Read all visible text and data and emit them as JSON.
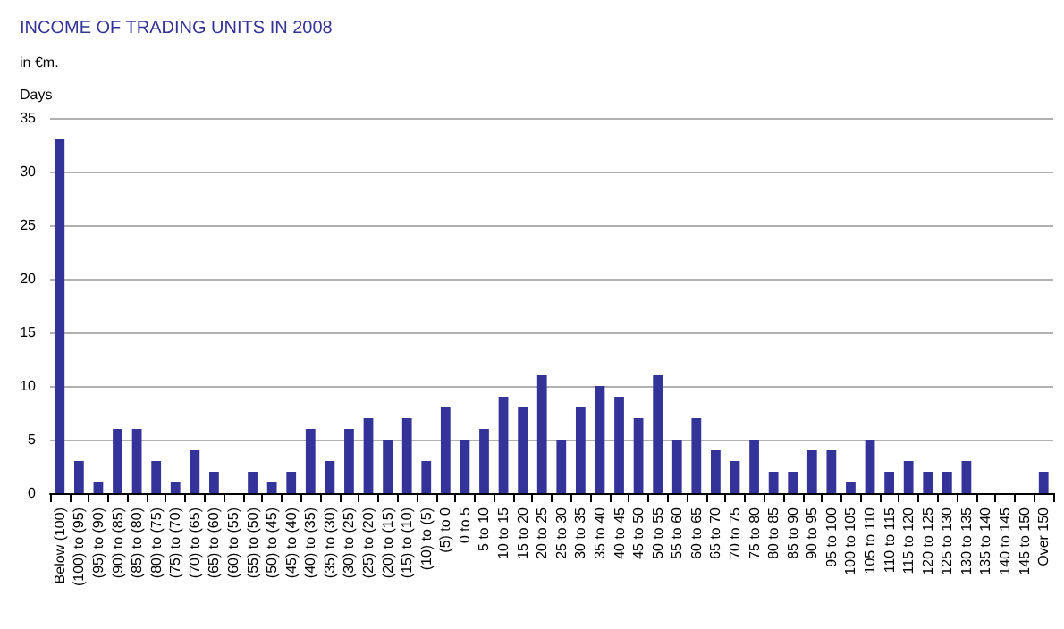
{
  "chart_data": {
    "type": "bar",
    "title": "INCOME OF TRADING UNITS IN 2008",
    "subtitle": "in €m.",
    "ylabel": "Days",
    "categories": [
      "Below (100)",
      "(100) to (95)",
      "(95) to (90)",
      "(90) to (85)",
      "(85) to (80)",
      "(80) to (75)",
      "(75) to (70)",
      "(70) to (65)",
      "(65) to (60)",
      "(60) to (55)",
      "(55) to (50)",
      "(50) to (45)",
      "(45) to (40)",
      "(40) to (35)",
      "(35) to (30)",
      "(30) to (25)",
      "(25) to (20)",
      "(20) to (15)",
      "(15) to (10)",
      "(10) to (5)",
      "(5) to 0",
      "0 to 5",
      "5 to 10",
      "10 to 15",
      "15 to 20",
      "20 to 25",
      "25 to 30",
      "30 to 35",
      "35 to 40",
      "40 to 45",
      "45 to 50",
      "50 to 55",
      "55 to 60",
      "60 to 65",
      "65 to 70",
      "70 to 75",
      "75 to 80",
      "80 to 85",
      "85 to 90",
      "90 to 95",
      "95 to 100",
      "100 to 105",
      "105 to 110",
      "110 to 115",
      "115 to 120",
      "120 to 125",
      "125 to 130",
      "130 to 135",
      "135 to 140",
      "140 to 145",
      "145 to 150",
      "Over 150"
    ],
    "values": [
      33,
      3,
      1,
      6,
      6,
      3,
      1,
      4,
      2,
      0,
      2,
      1,
      2,
      6,
      3,
      6,
      7,
      5,
      7,
      3,
      8,
      5,
      6,
      9,
      8,
      11,
      5,
      8,
      10,
      9,
      7,
      11,
      5,
      7,
      4,
      3,
      5,
      2,
      2,
      4,
      4,
      1,
      5,
      2,
      3,
      2,
      2,
      3,
      0,
      0,
      0,
      2
    ],
    "color": "#333399",
    "ylim": [
      0,
      35
    ],
    "yticks": [
      0,
      5,
      10,
      15,
      20,
      25,
      30,
      35
    ],
    "grid": "y"
  }
}
